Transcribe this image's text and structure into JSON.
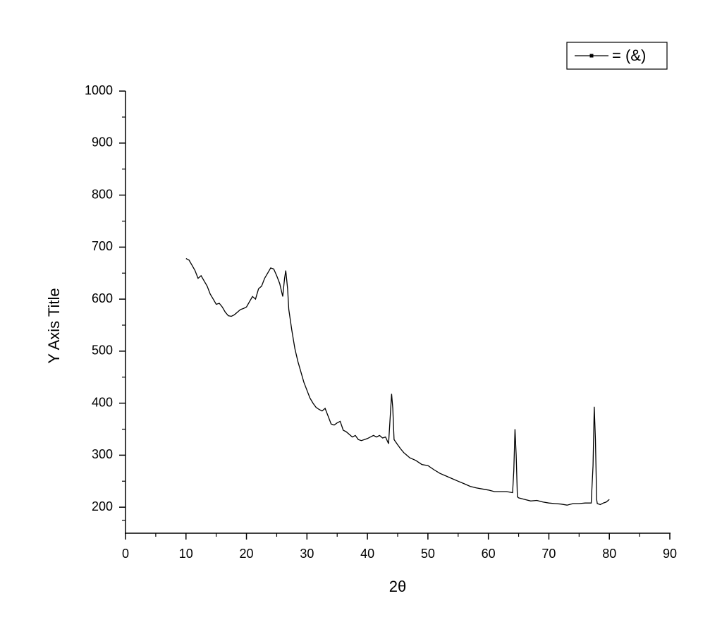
{
  "chart_data": {
    "type": "line",
    "x_label": "2θ",
    "y_label": "Y Axis Title",
    "xlim": [
      0,
      90
    ],
    "xticks": [
      0,
      10,
      20,
      30,
      40,
      50,
      60,
      70,
      80,
      90
    ],
    "ylim": [
      150,
      1000
    ],
    "yticks": [
      200,
      300,
      400,
      500,
      600,
      700,
      800,
      900,
      1000
    ],
    "legend": "top-right",
    "x": [
      10,
      10.5,
      11,
      11.5,
      12,
      12.5,
      13,
      13.5,
      14,
      14.5,
      15,
      15.5,
      16,
      16.5,
      17,
      17.5,
      18,
      18.5,
      19,
      19.5,
      20,
      20.5,
      21,
      21.5,
      22,
      22.5,
      23,
      23.5,
      24,
      24.5,
      25,
      25.5,
      26,
      26.3,
      26.5,
      26.8,
      27,
      27.5,
      28,
      28.5,
      29,
      29.5,
      30,
      30.5,
      31,
      31.5,
      32,
      32.5,
      33,
      33.5,
      34,
      34.5,
      35,
      35.5,
      36,
      36.5,
      37,
      37.5,
      38,
      38.5,
      39,
      39.5,
      40,
      40.5,
      41,
      41.5,
      42,
      42.5,
      43,
      43.5,
      43.8,
      44,
      44.2,
      44.4,
      45,
      45.5,
      46,
      46.5,
      47,
      48,
      49,
      50,
      51,
      52,
      53,
      54,
      55,
      56,
      57,
      58,
      59,
      60,
      61,
      62,
      63,
      64,
      64.2,
      64.4,
      64.6,
      64.8,
      65,
      66,
      67,
      68,
      69,
      70,
      71,
      72,
      73,
      74,
      75,
      76,
      77,
      77.3,
      77.5,
      77.7,
      77.9,
      78,
      78.5,
      79,
      79.5,
      80
    ],
    "series": [
      {
        "name": "= (&)",
        "color": "#000000",
        "values": [
          678,
          675,
          665,
          655,
          640,
          645,
          635,
          625,
          610,
          600,
          590,
          592,
          585,
          575,
          568,
          567,
          570,
          575,
          580,
          582,
          585,
          595,
          605,
          600,
          620,
          625,
          640,
          650,
          660,
          658,
          645,
          630,
          605,
          640,
          655,
          620,
          580,
          540,
          505,
          480,
          460,
          440,
          425,
          410,
          400,
          392,
          388,
          385,
          390,
          375,
          360,
          358,
          362,
          365,
          348,
          345,
          340,
          335,
          338,
          330,
          328,
          330,
          332,
          335,
          338,
          335,
          338,
          333,
          335,
          322,
          380,
          418,
          390,
          330,
          320,
          312,
          305,
          300,
          295,
          290,
          282,
          280,
          272,
          265,
          260,
          255,
          250,
          245,
          240,
          237,
          235,
          233,
          230,
          230,
          230,
          228,
          270,
          350,
          300,
          220,
          218,
          215,
          212,
          213,
          210,
          208,
          207,
          206,
          204,
          207,
          207,
          208,
          208,
          280,
          393,
          330,
          215,
          207,
          205,
          208,
          210,
          215
        ]
      }
    ]
  }
}
